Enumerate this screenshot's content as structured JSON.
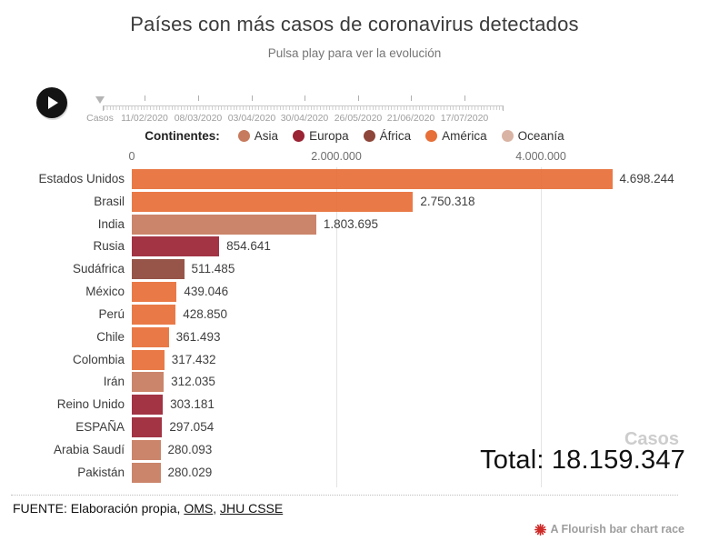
{
  "header": {
    "title": "Países con más casos de coronavirus detectados",
    "subtitle": "Pulsa play para ver la evolución"
  },
  "controls": {
    "play_button": "play",
    "timeline": {
      "labels": [
        "Casos",
        "11/02/2020",
        "08/03/2020",
        "03/04/2020",
        "30/04/2020",
        "26/05/2020",
        "21/06/2020",
        "17/07/2020"
      ]
    }
  },
  "legend": {
    "title": "Continentes:",
    "items": [
      {
        "label": "Asia",
        "color": "#C77B5E"
      },
      {
        "label": "Europa",
        "color": "#9A2334"
      },
      {
        "label": "África",
        "color": "#8E463A"
      },
      {
        "label": "América",
        "color": "#E76F38"
      },
      {
        "label": "Oceanía",
        "color": "#D9B3A4"
      }
    ]
  },
  "chart_data": {
    "type": "bar",
    "orientation": "horizontal",
    "title": "Países con más casos de coronavirus detectados",
    "series_name": "Casos",
    "x_axis": {
      "tick_labels": [
        "0",
        "2.000.000",
        "4.000.000"
      ],
      "tick_values": [
        0,
        2000000,
        4000000
      ],
      "xlim": [
        0,
        5600000
      ],
      "grid": true
    },
    "bars": [
      {
        "label": "Estados Unidos",
        "continent": "América",
        "value": 4698244,
        "value_label": "4.698.244"
      },
      {
        "label": "Brasil",
        "continent": "América",
        "value": 2750318,
        "value_label": "2.750.318"
      },
      {
        "label": "India",
        "continent": "Asia",
        "value": 1803695,
        "value_label": "1.803.695"
      },
      {
        "label": "Rusia",
        "continent": "Europa",
        "value": 854641,
        "value_label": "854.641"
      },
      {
        "label": "Sudáfrica",
        "continent": "África",
        "value": 511485,
        "value_label": "511.485"
      },
      {
        "label": "México",
        "continent": "América",
        "value": 439046,
        "value_label": "439.046"
      },
      {
        "label": "Perú",
        "continent": "América",
        "value": 428850,
        "value_label": "428.850"
      },
      {
        "label": "Chile",
        "continent": "América",
        "value": 361493,
        "value_label": "361.493"
      },
      {
        "label": "Colombia",
        "continent": "América",
        "value": 317432,
        "value_label": "317.432"
      },
      {
        "label": "Irán",
        "continent": "Asia",
        "value": 312035,
        "value_label": "312.035"
      },
      {
        "label": "Reino Unido",
        "continent": "Europa",
        "value": 303181,
        "value_label": "303.181"
      },
      {
        "label": "ESPAÑA",
        "continent": "Europa",
        "value": 297054,
        "value_label": "297.054"
      },
      {
        "label": "Arabia Saudí",
        "continent": "Asia",
        "value": 280093,
        "value_label": "280.093"
      },
      {
        "label": "Pakistán",
        "continent": "Asia",
        "value": 280029,
        "value_label": "280.029"
      }
    ],
    "overlay": {
      "unit_watermark": "Casos",
      "total_label": "Total: 18.159.347",
      "total_value": 18159347
    }
  },
  "footer": {
    "source_text": "FUENTE: Elaboración propia,",
    "link1": "OMS",
    "comma": ",",
    "link2": "JHU CSSE"
  },
  "branding": {
    "label": "A Flourish bar chart race",
    "icon_color": "#CE2A27"
  }
}
